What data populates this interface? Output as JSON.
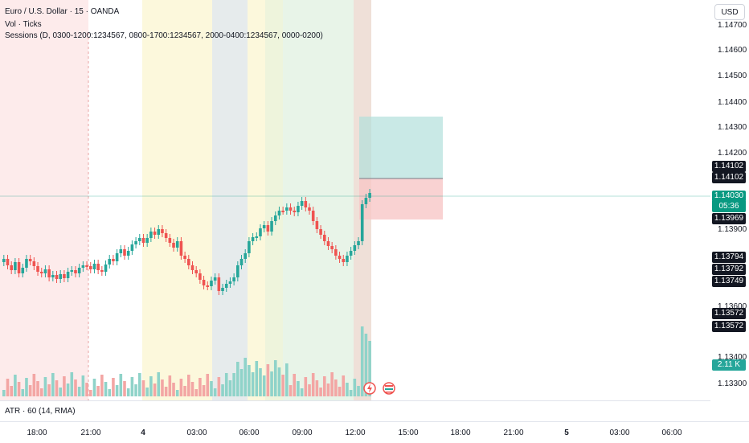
{
  "legend": {
    "symbol": "Euro / U.S. Dollar · 15 · OANDA",
    "vol": "Vol · Ticks",
    "sessions": "Sessions (D, 0300-1200:1234567, 0800-1700:1234567, 2000-0400:1234567, 0000-0200)"
  },
  "price_axis": {
    "currency_button": "USD",
    "ticks": [
      "1.14700",
      "1.14600",
      "1.14500",
      "1.14400",
      "1.14300",
      "1.14200",
      "1.13900",
      "1.13600",
      "1.13400",
      "1.13300"
    ],
    "tags": [
      {
        "text": "1.14102",
        "color": "#131722"
      },
      {
        "text": "1.14102",
        "color": "#131722"
      },
      {
        "text": "1.14030",
        "color": "#089981"
      },
      {
        "text": "05:36",
        "color": "#089981"
      },
      {
        "text": "1.13969",
        "color": "#131722"
      },
      {
        "text": "1.13794",
        "color": "#131722"
      },
      {
        "text": "1.13792",
        "color": "#131722"
      },
      {
        "text": "1.13749",
        "color": "#131722"
      },
      {
        "text": "1.13572",
        "color": "#131722"
      },
      {
        "text": "1.13572",
        "color": "#131722"
      },
      {
        "text": "2.11 K",
        "color": "#26a69a"
      }
    ]
  },
  "time_axis": {
    "labels": [
      {
        "text": "18:00",
        "bold": false
      },
      {
        "text": "21:00",
        "bold": false
      },
      {
        "text": "4",
        "bold": true
      },
      {
        "text": "03:00",
        "bold": false
      },
      {
        "text": "06:00",
        "bold": false
      },
      {
        "text": "09:00",
        "bold": false
      },
      {
        "text": "12:00",
        "bold": false
      },
      {
        "text": "15:00",
        "bold": false
      },
      {
        "text": "18:00",
        "bold": false
      },
      {
        "text": "21:00",
        "bold": false
      },
      {
        "text": "5",
        "bold": true
      },
      {
        "text": "03:00",
        "bold": false
      },
      {
        "text": "06:00",
        "bold": false
      }
    ]
  },
  "atr_pane": {
    "label": "ATR · 60 (14, RMA)"
  },
  "colors": {
    "up": "#26a69a",
    "down": "#ef5350",
    "accent": "#089981"
  },
  "icons": [
    "flash-event-icon",
    "flag-event-icon"
  ]
}
